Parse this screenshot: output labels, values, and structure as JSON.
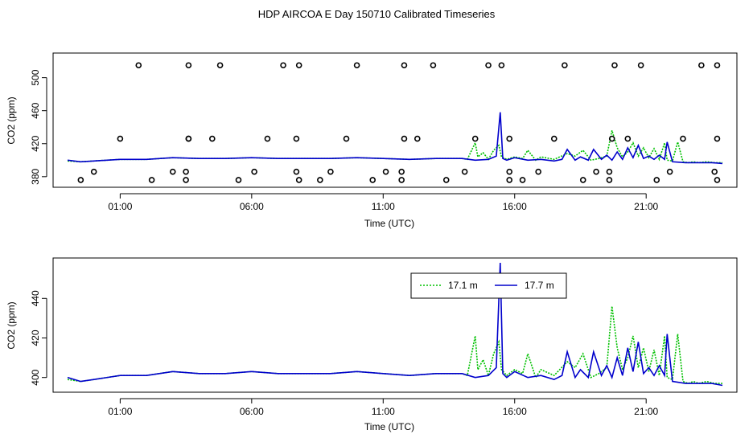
{
  "title": "HDP AIRCOA E  Day 150710  Calibrated Timeseries",
  "colors": {
    "green": "#00c000",
    "blue": "#0000cc",
    "axis": "#000000"
  },
  "chart_data": [
    {
      "type": "line",
      "xlabel": "Time (UTC)",
      "ylabel": "CO2 (ppm)",
      "xlim": [
        -1.0,
        23.9
      ],
      "ylim": [
        373,
        524
      ],
      "x_ticks": [
        1,
        6,
        11,
        16,
        21
      ],
      "x_tick_labels": [
        "01:00",
        "06:00",
        "11:00",
        "16:00",
        "21:00"
      ],
      "y_ticks": [
        380,
        420,
        460,
        500
      ],
      "y_tick_labels": [
        "380",
        "420",
        "460",
        "500"
      ],
      "series": [
        {
          "color": "green",
          "style": "dotted",
          "x": [
            -1.0,
            -0.5,
            0.0,
            1.0,
            2.0,
            3.0,
            4.0,
            5.0,
            6.0,
            7.0,
            8.0,
            9.0,
            10.0,
            11.0,
            12.0,
            13.0,
            14.0,
            14.2,
            14.5,
            14.6,
            14.8,
            15.0,
            15.2,
            15.4,
            15.5,
            15.7,
            16.0,
            16.3,
            16.5,
            16.8,
            17.0,
            17.5,
            18.0,
            18.3,
            18.6,
            18.9,
            19.2,
            19.5,
            19.7,
            19.9,
            20.1,
            20.3,
            20.5,
            20.7,
            20.9,
            21.1,
            21.3,
            21.5,
            21.7,
            21.8,
            22.0,
            22.2,
            22.4,
            22.6,
            22.8,
            23.0,
            23.3,
            23.6,
            23.9
          ],
          "y": [
            399,
            398,
            399,
            401,
            401,
            403,
            402,
            402,
            403,
            402,
            402,
            402,
            403,
            402,
            401,
            402,
            402,
            401,
            421,
            404,
            409,
            401,
            412,
            418,
            404,
            401,
            404,
            402,
            412,
            400,
            404,
            401,
            408,
            405,
            412,
            400,
            402,
            405,
            436,
            415,
            404,
            410,
            421,
            405,
            415,
            403,
            414,
            401,
            421,
            400,
            399,
            422,
            398,
            397,
            398,
            397,
            398,
            397,
            397
          ]
        },
        {
          "color": "blue",
          "style": "solid",
          "x": [
            -1.0,
            -0.5,
            0.0,
            1.0,
            2.0,
            3.0,
            4.0,
            5.0,
            6.0,
            7.0,
            8.0,
            9.0,
            10.0,
            11.0,
            12.0,
            13.0,
            14.0,
            14.5,
            15.0,
            15.3,
            15.45,
            15.55,
            15.7,
            16.0,
            16.5,
            17.0,
            17.5,
            17.8,
            18.0,
            18.3,
            18.5,
            18.8,
            19.0,
            19.3,
            19.5,
            19.7,
            19.9,
            20.1,
            20.3,
            20.5,
            20.7,
            20.9,
            21.1,
            21.3,
            21.5,
            21.7,
            21.8,
            22.0,
            22.5,
            23.0,
            23.5,
            23.9
          ],
          "y": [
            400,
            398,
            399,
            401,
            401,
            403,
            402,
            402,
            403,
            402,
            402,
            402,
            403,
            402,
            401,
            402,
            402,
            400,
            401,
            405,
            458,
            402,
            400,
            403,
            400,
            401,
            399,
            401,
            413,
            400,
            404,
            400,
            413,
            401,
            406,
            400,
            410,
            401,
            415,
            403,
            418,
            402,
            405,
            401,
            406,
            401,
            422,
            398,
            397,
            397,
            397,
            396
          ]
        }
      ],
      "points": {
        "x": [
          -0.5,
          0.0,
          1.0,
          1.7,
          2.2,
          3.0,
          3.5,
          3.5,
          3.6,
          3.6,
          3.6,
          4.5,
          4.8,
          5.5,
          6.1,
          6.6,
          7.2,
          7.7,
          7.7,
          7.8,
          7.8,
          8.6,
          9.0,
          9.6,
          10.0,
          10.6,
          11.1,
          11.7,
          11.7,
          11.8,
          11.8,
          12.3,
          12.9,
          13.4,
          14.1,
          14.5,
          15.0,
          15.5,
          15.8,
          15.8,
          15.8,
          16.3,
          16.9,
          17.5,
          17.9,
          18.6,
          19.1,
          19.6,
          19.6,
          19.7,
          19.8,
          20.3,
          20.8,
          21.4,
          21.9,
          22.4,
          23.1,
          23.6,
          23.7,
          23.7,
          23.7
        ],
        "y": [
          376,
          386,
          426,
          515,
          376,
          386,
          376,
          386,
          426,
          515,
          426,
          426,
          515,
          376,
          386,
          426,
          515,
          386,
          426,
          376,
          515,
          376,
          386,
          426,
          515,
          376,
          386,
          376,
          386,
          426,
          515,
          426,
          515,
          376,
          386,
          426,
          515,
          515,
          376,
          386,
          426,
          376,
          386,
          426,
          515,
          376,
          386,
          376,
          386,
          426,
          515,
          426,
          515,
          376,
          386,
          426,
          515,
          386,
          426,
          515,
          376
        ]
      }
    },
    {
      "type": "line",
      "xlabel": "Time (UTC)",
      "ylabel": "CO2 (ppm)",
      "xlim": [
        -1.0,
        23.9
      ],
      "ylim": [
        395,
        458
      ],
      "x_ticks": [
        1,
        6,
        11,
        16,
        21
      ],
      "x_tick_labels": [
        "01:00",
        "06:00",
        "11:00",
        "16:00",
        "21:00"
      ],
      "y_ticks": [
        400,
        420,
        440
      ],
      "y_tick_labels": [
        "400",
        "420",
        "440"
      ],
      "legend": {
        "position": "top-center",
        "entries": [
          {
            "label": "17.1 m",
            "color": "green",
            "style": "dotted"
          },
          {
            "label": "17.7 m",
            "color": "blue",
            "style": "solid"
          }
        ]
      },
      "series": [
        {
          "color": "green",
          "style": "dotted",
          "x": [
            -1.0,
            -0.5,
            0.0,
            1.0,
            2.0,
            3.0,
            4.0,
            5.0,
            6.0,
            7.0,
            8.0,
            9.0,
            10.0,
            11.0,
            12.0,
            13.0,
            14.0,
            14.2,
            14.5,
            14.6,
            14.8,
            15.0,
            15.2,
            15.4,
            15.5,
            15.7,
            16.0,
            16.3,
            16.5,
            16.8,
            17.0,
            17.5,
            18.0,
            18.3,
            18.6,
            18.9,
            19.2,
            19.5,
            19.7,
            19.9,
            20.1,
            20.3,
            20.5,
            20.7,
            20.9,
            21.1,
            21.3,
            21.5,
            21.7,
            21.8,
            22.0,
            22.2,
            22.4,
            22.6,
            22.8,
            23.0,
            23.3,
            23.6,
            23.9
          ],
          "y": [
            399,
            398,
            399,
            401,
            401,
            403,
            402,
            402,
            403,
            402,
            402,
            402,
            403,
            402,
            401,
            402,
            402,
            401,
            421,
            404,
            409,
            401,
            412,
            418,
            404,
            401,
            404,
            402,
            412,
            400,
            404,
            401,
            408,
            405,
            412,
            400,
            402,
            405,
            436,
            415,
            404,
            410,
            421,
            405,
            415,
            403,
            414,
            401,
            421,
            400,
            399,
            422,
            398,
            397,
            398,
            397,
            398,
            397,
            397
          ]
        },
        {
          "color": "blue",
          "style": "solid",
          "x": [
            -1.0,
            -0.5,
            0.0,
            1.0,
            2.0,
            3.0,
            4.0,
            5.0,
            6.0,
            7.0,
            8.0,
            9.0,
            10.0,
            11.0,
            12.0,
            13.0,
            14.0,
            14.5,
            15.0,
            15.3,
            15.45,
            15.55,
            15.7,
            16.0,
            16.5,
            17.0,
            17.5,
            17.8,
            18.0,
            18.3,
            18.5,
            18.8,
            19.0,
            19.3,
            19.5,
            19.7,
            19.9,
            20.1,
            20.3,
            20.5,
            20.7,
            20.9,
            21.1,
            21.3,
            21.5,
            21.7,
            21.8,
            22.0,
            22.5,
            23.0,
            23.5,
            23.9
          ],
          "y": [
            400,
            398,
            399,
            401,
            401,
            403,
            402,
            402,
            403,
            402,
            402,
            402,
            403,
            402,
            401,
            402,
            402,
            400,
            401,
            405,
            458,
            402,
            400,
            403,
            400,
            401,
            399,
            401,
            413,
            400,
            404,
            400,
            413,
            401,
            406,
            400,
            410,
            401,
            415,
            403,
            418,
            402,
            405,
            401,
            406,
            401,
            422,
            398,
            397,
            397,
            397,
            396
          ]
        }
      ]
    }
  ]
}
